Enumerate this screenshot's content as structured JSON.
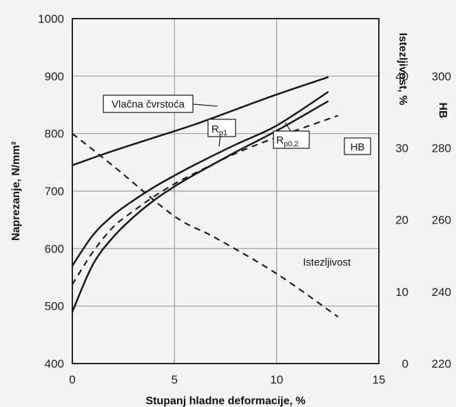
{
  "chart_data": {
    "type": "line",
    "xlabel": "Stupanj hladne deformacije, %",
    "ylabel": "Naprezanje, N/mm²",
    "y2label": "Istezljivost, %",
    "y3label": "HB",
    "xlim": [
      0,
      15
    ],
    "ylim": [
      400,
      1000
    ],
    "y2lim": [
      0,
      40
    ],
    "y3lim": [
      220,
      300
    ],
    "x_ticks": [
      "0",
      "5",
      "10",
      "15"
    ],
    "y_ticks": [
      "400",
      "500",
      "600",
      "700",
      "800",
      "900",
      "1000"
    ],
    "y2_ticks": [
      "0",
      "10",
      "20",
      "30",
      "40"
    ],
    "y3_ticks": [
      "220",
      "240",
      "260",
      "280",
      "300"
    ],
    "grid": true,
    "series": [
      {
        "name": "Vlačna čvrstoća",
        "axis": "left",
        "style": "solid",
        "x": [
          0,
          2,
          4,
          6,
          8,
          10,
          12.5
        ],
        "y": [
          745,
          770,
          793,
          816,
          842,
          868,
          898
        ]
      },
      {
        "name": "Rp1",
        "axis": "left",
        "style": "solid",
        "x": [
          0,
          1,
          2,
          3,
          4,
          5,
          6,
          8,
          10,
          12.5
        ],
        "y": [
          570,
          623,
          658,
          684,
          707,
          727,
          746,
          781,
          814,
          872
        ]
      },
      {
        "name": "Rp0,2",
        "axis": "left",
        "style": "solid",
        "x": [
          0,
          1,
          2,
          3,
          4,
          5,
          6,
          8,
          10,
          12.5
        ],
        "y": [
          490,
          572,
          620,
          655,
          684,
          708,
          729,
          768,
          805,
          856
        ]
      },
      {
        "name": "HB",
        "axis": "right_hb",
        "style": "dashed",
        "x": [
          0,
          1,
          2,
          3,
          4,
          5,
          6,
          8,
          10,
          12,
          13
        ],
        "y": [
          242,
          251,
          258,
          262.5,
          266.5,
          270,
          273,
          278.5,
          283,
          287,
          289
        ]
      },
      {
        "name": "Istezljivost",
        "axis": "right_elong",
        "style": "dashed",
        "x": [
          0,
          2,
          5,
          7,
          10,
          13
        ],
        "y": [
          32,
          27.5,
          20.5,
          17.5,
          12.5,
          6.5
        ]
      }
    ]
  }
}
